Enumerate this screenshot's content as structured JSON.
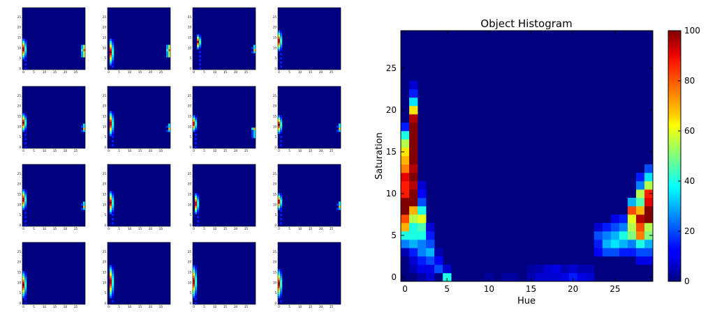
{
  "chart_data": {
    "type": "heatmap",
    "title": "Object Histogram",
    "xlabel": "Hue",
    "ylabel": "Saturation",
    "x_ticks": [
      "0",
      "5",
      "10",
      "15",
      "20",
      "25"
    ],
    "y_ticks": [
      "0",
      "5",
      "10",
      "15",
      "20",
      "25"
    ],
    "colorbar_ticks": [
      "0",
      "20",
      "40",
      "60",
      "80",
      "100"
    ],
    "colorbar_range": [
      0,
      100
    ],
    "colormap": "jet",
    "grid": false,
    "nx": 30,
    "ny": 30,
    "hot_cells": [
      [
        0,
        3,
        5
      ],
      [
        0,
        4,
        25
      ],
      [
        0,
        5,
        40
      ],
      [
        0,
        6,
        70
      ],
      [
        0,
        7,
        80
      ],
      [
        0,
        8,
        100
      ],
      [
        0,
        9,
        100
      ],
      [
        0,
        10,
        85
      ],
      [
        0,
        11,
        85
      ],
      [
        0,
        12,
        90
      ],
      [
        0,
        13,
        75
      ],
      [
        0,
        14,
        70
      ],
      [
        0,
        15,
        65
      ],
      [
        0,
        16,
        55
      ],
      [
        0,
        17,
        40
      ],
      [
        0,
        18,
        15
      ],
      [
        1,
        1,
        5
      ],
      [
        1,
        2,
        8
      ],
      [
        1,
        3,
        15
      ],
      [
        1,
        4,
        30
      ],
      [
        1,
        5,
        40
      ],
      [
        1,
        6,
        40
      ],
      [
        1,
        7,
        55
      ],
      [
        1,
        8,
        70
      ],
      [
        1,
        9,
        100
      ],
      [
        1,
        10,
        100
      ],
      [
        1,
        11,
        95
      ],
      [
        1,
        12,
        100
      ],
      [
        1,
        13,
        95
      ],
      [
        1,
        14,
        100
      ],
      [
        1,
        15,
        100
      ],
      [
        1,
        16,
        100
      ],
      [
        1,
        17,
        100
      ],
      [
        1,
        18,
        100
      ],
      [
        1,
        19,
        95
      ],
      [
        1,
        20,
        65
      ],
      [
        1,
        21,
        35
      ],
      [
        1,
        22,
        15
      ],
      [
        1,
        23,
        8
      ],
      [
        2,
        0,
        4
      ],
      [
        2,
        1,
        10
      ],
      [
        2,
        2,
        15
      ],
      [
        2,
        3,
        25
      ],
      [
        2,
        4,
        25
      ],
      [
        2,
        5,
        40
      ],
      [
        2,
        6,
        45
      ],
      [
        2,
        7,
        60
      ],
      [
        2,
        8,
        40
      ],
      [
        2,
        9,
        20
      ],
      [
        2,
        10,
        12
      ],
      [
        2,
        11,
        8
      ],
      [
        3,
        0,
        8
      ],
      [
        3,
        1,
        10
      ],
      [
        3,
        2,
        20
      ],
      [
        3,
        3,
        30
      ],
      [
        3,
        4,
        20
      ],
      [
        3,
        5,
        15
      ],
      [
        3,
        6,
        8
      ],
      [
        4,
        1,
        20
      ],
      [
        4,
        2,
        12
      ],
      [
        4,
        3,
        5
      ],
      [
        5,
        0,
        40
      ],
      [
        5,
        1,
        8
      ],
      [
        10,
        0,
        3
      ],
      [
        12,
        0,
        3
      ],
      [
        13,
        0,
        3
      ],
      [
        15,
        0,
        5
      ],
      [
        15,
        1,
        3
      ],
      [
        16,
        0,
        8
      ],
      [
        16,
        1,
        5
      ],
      [
        17,
        0,
        8
      ],
      [
        17,
        1,
        8
      ],
      [
        18,
        0,
        8
      ],
      [
        18,
        1,
        10
      ],
      [
        19,
        0,
        10
      ],
      [
        19,
        1,
        5
      ],
      [
        20,
        0,
        15
      ],
      [
        20,
        1,
        8
      ],
      [
        21,
        0,
        10
      ],
      [
        21,
        1,
        5
      ],
      [
        22,
        0,
        8
      ],
      [
        22,
        1,
        5
      ],
      [
        23,
        3,
        12
      ],
      [
        23,
        4,
        15
      ],
      [
        23,
        5,
        20
      ],
      [
        23,
        6,
        8
      ],
      [
        24,
        3,
        20
      ],
      [
        24,
        4,
        30
      ],
      [
        24,
        5,
        25
      ],
      [
        24,
        6,
        15
      ],
      [
        25,
        3,
        20
      ],
      [
        25,
        4,
        35
      ],
      [
        25,
        5,
        30
      ],
      [
        25,
        6,
        20
      ],
      [
        25,
        7,
        10
      ],
      [
        26,
        3,
        15
      ],
      [
        26,
        4,
        30
      ],
      [
        26,
        5,
        40
      ],
      [
        26,
        6,
        25
      ],
      [
        26,
        7,
        15
      ],
      [
        27,
        3,
        15
      ],
      [
        27,
        4,
        25
      ],
      [
        27,
        5,
        50
      ],
      [
        27,
        6,
        55
      ],
      [
        27,
        7,
        60
      ],
      [
        27,
        8,
        80
      ],
      [
        27,
        9,
        30
      ],
      [
        28,
        2,
        10
      ],
      [
        28,
        3,
        20
      ],
      [
        28,
        4,
        40
      ],
      [
        28,
        5,
        75
      ],
      [
        28,
        6,
        80
      ],
      [
        28,
        7,
        95
      ],
      [
        28,
        8,
        70
      ],
      [
        28,
        9,
        45
      ],
      [
        28,
        10,
        55
      ],
      [
        28,
        11,
        25
      ],
      [
        28,
        12,
        15
      ],
      [
        29,
        2,
        10
      ],
      [
        29,
        3,
        20
      ],
      [
        29,
        4,
        30
      ],
      [
        29,
        5,
        50
      ],
      [
        29,
        6,
        55
      ],
      [
        29,
        7,
        100
      ],
      [
        29,
        8,
        100
      ],
      [
        29,
        9,
        90
      ],
      [
        29,
        10,
        85
      ],
      [
        29,
        11,
        55
      ],
      [
        29,
        12,
        35
      ],
      [
        29,
        13,
        20
      ]
    ],
    "thumbnails": [
      {
        "stripe": 0,
        "rows": [
          5,
          14
        ],
        "wrap": "right"
      },
      {
        "stripe": 1,
        "rows": [
          2,
          14
        ],
        "wrap": "right"
      },
      {
        "stripe": 2,
        "rows": [
          10,
          16
        ],
        "wrap": "right-small"
      },
      {
        "stripe": 0,
        "rows": [
          9,
          18
        ],
        "wrap": "none"
      },
      {
        "stripe": 0,
        "rows": [
          8,
          16
        ],
        "wrap": "right-small"
      },
      {
        "stripe": 1,
        "rows": [
          6,
          17
        ],
        "wrap": "right-small"
      },
      {
        "stripe": 0,
        "rows": [
          8,
          15
        ],
        "wrap": "right-mid"
      },
      {
        "stripe": 0,
        "rows": [
          7,
          15
        ],
        "wrap": "right-small"
      },
      {
        "stripe": 0,
        "rows": [
          8,
          17
        ],
        "wrap": "right-small"
      },
      {
        "stripe": 1,
        "rows": [
          6,
          16
        ],
        "wrap": "none"
      },
      {
        "stripe": 1,
        "rows": [
          6,
          15
        ],
        "wrap": "none"
      },
      {
        "stripe": 0,
        "rows": [
          8,
          15
        ],
        "wrap": "right-small"
      },
      {
        "stripe": 0,
        "rows": [
          3,
          15
        ],
        "wrap": "none"
      },
      {
        "stripe": 1,
        "rows": [
          3,
          18
        ],
        "wrap": "none"
      },
      {
        "stripe": 0,
        "rows": [
          3,
          18
        ],
        "wrap": "none"
      },
      {
        "stripe": 0,
        "rows": [
          3,
          16
        ],
        "wrap": "none"
      }
    ],
    "thumbnail_ticks_x": [
      "0",
      "5",
      "10",
      "15",
      "20",
      "25"
    ],
    "thumbnail_ticks_y": [
      "0",
      "5",
      "10",
      "15",
      "20",
      "25"
    ]
  }
}
